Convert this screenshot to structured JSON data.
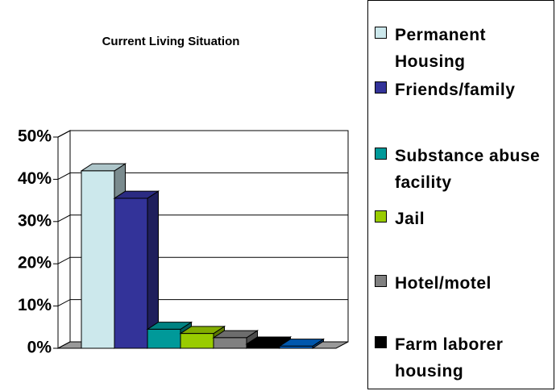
{
  "chart_data": {
    "type": "bar3d",
    "title": "Current Living Situation",
    "series": [
      {
        "name": "Permanent Housing",
        "color": "#cce8ec",
        "values": [
          42
        ]
      },
      {
        "name": "Friends/family",
        "color": "#333399",
        "values": [
          35.5
        ]
      },
      {
        "name": "Substance abuse facility",
        "color": "#009999",
        "values": [
          4.5
        ]
      },
      {
        "name": "Jail",
        "color": "#99cc00",
        "values": [
          3.5
        ]
      },
      {
        "name": "Hotel/motel",
        "color": "#808080",
        "values": [
          2.5
        ]
      },
      {
        "name": "Farm laborer housing",
        "color": "#000000",
        "values": [
          1
        ]
      },
      {
        "name": null,
        "color": "#0066cc",
        "values": [
          0.5
        ]
      }
    ],
    "ylim": [
      0,
      50
    ],
    "yticks": [
      {
        "value": 0,
        "label": "0%"
      },
      {
        "value": 10,
        "label": "10%"
      },
      {
        "value": 20,
        "label": "20%"
      },
      {
        "value": 30,
        "label": "30%"
      },
      {
        "value": 40,
        "label": "40%"
      },
      {
        "value": 50,
        "label": "50%"
      }
    ],
    "grid": true,
    "legend": "right"
  }
}
